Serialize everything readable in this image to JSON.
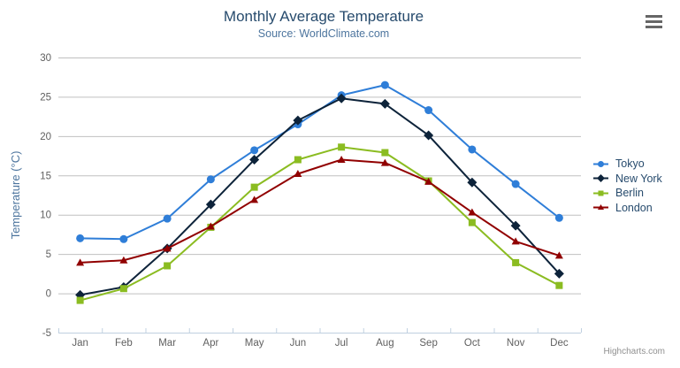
{
  "chart": {
    "credit_label": "Highcharts.com",
    "context_menu_icon": "hamburger-icon"
  },
  "chart_data": {
    "type": "line",
    "title": "Monthly Average Temperature",
    "subtitle": "Source: WorldClimate.com",
    "categories": [
      "Jan",
      "Feb",
      "Mar",
      "Apr",
      "May",
      "Jun",
      "Jul",
      "Aug",
      "Sep",
      "Oct",
      "Nov",
      "Dec"
    ],
    "xlabel": "",
    "ylabel": "Temperature (°C)",
    "ylim": [
      -5,
      30
    ],
    "yticks": [
      -5,
      0,
      5,
      10,
      15,
      20,
      25,
      30
    ],
    "grid": "horizontal",
    "legend_position": "right",
    "series": [
      {
        "name": "Tokyo",
        "color": "#2f7ed8",
        "marker": "circle",
        "values": [
          7.0,
          6.9,
          9.5,
          14.5,
          18.2,
          21.5,
          25.2,
          26.5,
          23.3,
          18.3,
          13.9,
          9.6
        ]
      },
      {
        "name": "New York",
        "color": "#0d233a",
        "marker": "diamond",
        "values": [
          -0.2,
          0.8,
          5.7,
          11.3,
          17.0,
          22.0,
          24.8,
          24.1,
          20.1,
          14.1,
          8.6,
          2.5
        ]
      },
      {
        "name": "Berlin",
        "color": "#8bbc21",
        "marker": "square",
        "values": [
          -0.9,
          0.6,
          3.5,
          8.4,
          13.5,
          17.0,
          18.6,
          17.9,
          14.3,
          9.0,
          3.9,
          1.0
        ]
      },
      {
        "name": "London",
        "color": "#910000",
        "marker": "triangle",
        "values": [
          3.9,
          4.2,
          5.7,
          8.5,
          11.9,
          15.2,
          17.0,
          16.6,
          14.2,
          10.3,
          6.6,
          4.8
        ]
      }
    ],
    "colors": {
      "title": "#274b6d",
      "subtitle": "#4d759e",
      "axis_title": "#4d759e",
      "axis_label": "#606060",
      "grid": "#c0c0c0",
      "axis_line": "#c0d0e0",
      "legend_text": "#274b6d",
      "credit": "#909090",
      "menu_icon": "#666666"
    }
  }
}
